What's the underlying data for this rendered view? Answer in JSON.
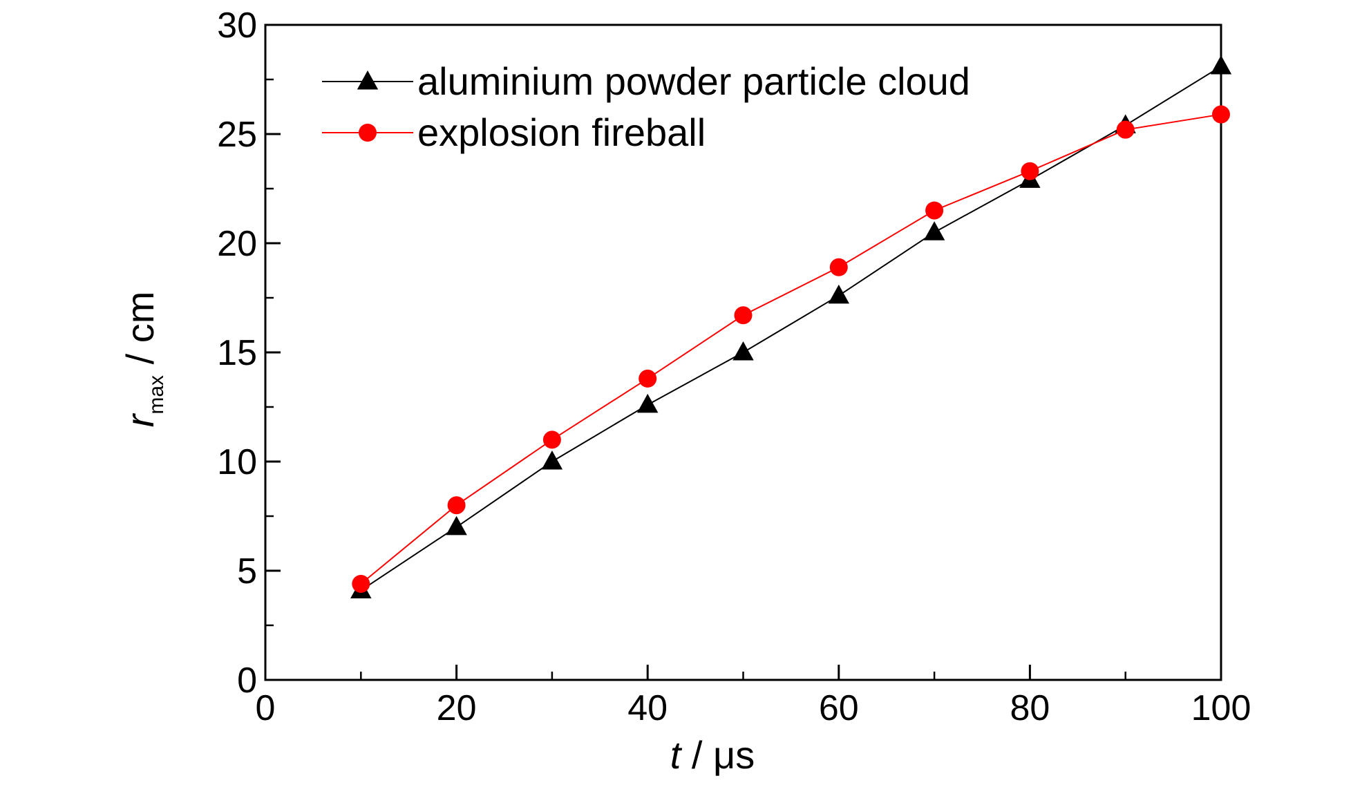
{
  "chart_data": {
    "type": "line",
    "xlabel": {
      "var": "t",
      "unit": " / μs"
    },
    "ylabel": {
      "var": "r",
      "sub": "max",
      "unit": " / cm"
    },
    "xlim": [
      0,
      100
    ],
    "ylim": [
      0,
      30
    ],
    "xticks": [
      0,
      20,
      40,
      60,
      80,
      100
    ],
    "yticks": [
      0,
      5,
      10,
      15,
      20,
      25,
      30
    ],
    "x_minor_step": 10,
    "y_minor_step": 2.5,
    "grid": false,
    "legend_position": "top-left",
    "x": [
      10,
      20,
      30,
      40,
      50,
      60,
      70,
      80,
      90,
      100
    ],
    "series": [
      {
        "name": "aluminium powder particle cloud",
        "marker": "triangle",
        "color": "#000000",
        "values": [
          4.1,
          7.0,
          10.0,
          12.6,
          15.0,
          17.6,
          20.5,
          22.9,
          25.4,
          28.1
        ]
      },
      {
        "name": "explosion fireball",
        "marker": "circle",
        "color": "#ff0000",
        "values": [
          4.4,
          8.0,
          11.0,
          13.8,
          16.7,
          18.9,
          21.5,
          23.3,
          25.2,
          25.9
        ]
      }
    ]
  }
}
